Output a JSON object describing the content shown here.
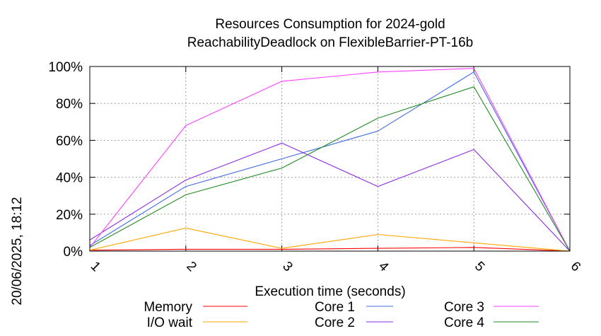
{
  "chart_data": {
    "type": "line",
    "title": "Resources Consumption for 2024-gold",
    "subtitle": "ReachabilityDeadlock on FlexibleBarrier-PT-16b",
    "xlabel": "Execution time (seconds)",
    "side_label": "20/06/2025, 18:12",
    "x": [
      1,
      2,
      3,
      4,
      5,
      6
    ],
    "x_ticks": [
      "1",
      "2",
      "3",
      "4",
      "5",
      "6"
    ],
    "y_ticks": [
      "0%",
      "20%",
      "40%",
      "60%",
      "80%",
      "100%"
    ],
    "xlim": [
      1,
      6
    ],
    "ylim": [
      0,
      100
    ],
    "grid": true,
    "legend_position": "bottom",
    "series": [
      {
        "name": "Memory",
        "color": "#ff0000",
        "values": [
          0.5,
          1,
          1,
          1.5,
          2,
          0
        ]
      },
      {
        "name": "I/O wait",
        "color": "#ffa500",
        "values": [
          0.5,
          12.5,
          1.5,
          9,
          4.5,
          0
        ]
      },
      {
        "name": "Core 1",
        "color": "#4169e1",
        "values": [
          3,
          35,
          50,
          65,
          97,
          0
        ]
      },
      {
        "name": "Core 2",
        "color": "#8a2be2",
        "values": [
          6,
          38.5,
          58.5,
          35,
          55,
          0
        ]
      },
      {
        "name": "Core 3",
        "color": "#ff40ff",
        "values": [
          2,
          68,
          92,
          97,
          99,
          0
        ]
      },
      {
        "name": "Core 4",
        "color": "#228b22",
        "values": [
          2,
          30.5,
          45,
          72,
          89,
          0
        ]
      }
    ]
  }
}
